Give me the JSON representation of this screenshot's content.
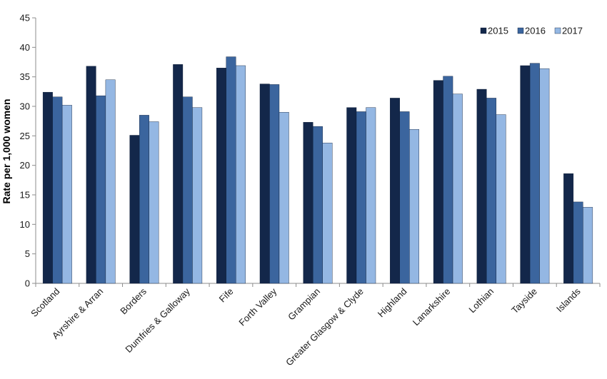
{
  "chart_data": {
    "type": "bar",
    "title": "",
    "xlabel": "",
    "ylabel": "Rate per 1,000 women",
    "ylim": [
      0,
      45
    ],
    "ytick_step": 5,
    "grid": false,
    "legend_position": "top-right",
    "categories": [
      "Scotland",
      "Ayrshire & Arran",
      "Borders",
      "Dumfries & Galloway",
      "Fife",
      "Forth Valley",
      "Grampian",
      "Greater Glasgow & Clyde",
      "Highland",
      "Lanarkshire",
      "Lothian",
      "Tayside",
      "Islands"
    ],
    "series": [
      {
        "name": "2015",
        "color": "#13274a",
        "values": [
          32.4,
          36.8,
          25.1,
          37.1,
          36.5,
          33.8,
          27.3,
          29.8,
          31.4,
          34.4,
          32.9,
          36.9,
          18.6
        ]
      },
      {
        "name": "2016",
        "color": "#3b659e",
        "values": [
          31.6,
          31.8,
          28.5,
          31.6,
          38.4,
          33.7,
          26.6,
          29.1,
          29.1,
          35.1,
          31.4,
          37.3,
          13.8
        ]
      },
      {
        "name": "2017",
        "color": "#94b7e3",
        "values": [
          30.2,
          34.5,
          27.4,
          29.8,
          36.9,
          29.0,
          23.8,
          29.8,
          26.1,
          32.1,
          28.6,
          36.4,
          12.9
        ]
      }
    ]
  }
}
